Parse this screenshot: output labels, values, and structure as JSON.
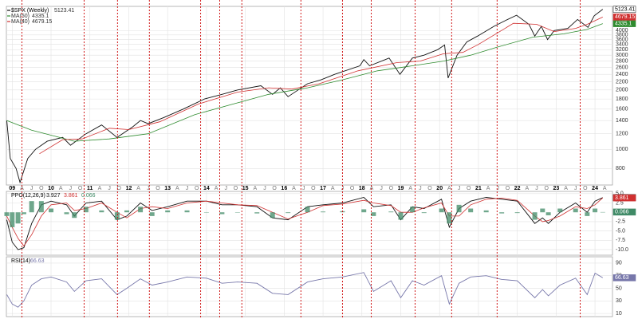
{
  "chart_data": [
    {
      "type": "line",
      "title": "$SPX (Weekly)",
      "log": true,
      "grid": true,
      "xlim": [
        2008.85,
        2024.45
      ],
      "ylim": [
        660,
        5300
      ],
      "yticks": [
        800,
        1000,
        1200,
        1400,
        1600,
        1800,
        2000,
        2200,
        2400,
        2600,
        2800,
        3000,
        3200,
        3400,
        3600,
        3800,
        4000
      ],
      "xticks": [
        {
          "value": 2009,
          "label": "09"
        },
        {
          "value": 2010,
          "label": "10"
        },
        {
          "value": 2011,
          "label": "11"
        },
        {
          "value": 2012,
          "label": "12"
        },
        {
          "value": 2013,
          "label": "13"
        },
        {
          "value": 2014,
          "label": "14"
        },
        {
          "value": 2015,
          "label": "15"
        },
        {
          "value": 2016,
          "label": "16"
        },
        {
          "value": 2017,
          "label": "17"
        },
        {
          "value": 2018,
          "label": "18"
        },
        {
          "value": 2019,
          "label": "19"
        },
        {
          "value": 2020,
          "label": "20"
        },
        {
          "value": 2021,
          "label": "21"
        },
        {
          "value": 2022,
          "label": "22"
        },
        {
          "value": 2023,
          "label": "23"
        },
        {
          "value": 2024,
          "label": "24"
        }
      ],
      "month_ticks": [
        {
          "value": 2009.25,
          "label": "A"
        },
        {
          "value": 2009.5,
          "label": "J"
        },
        {
          "value": 2009.75,
          "label": "O"
        },
        {
          "value": 2010.25,
          "label": "A"
        },
        {
          "value": 2010.5,
          "label": "J"
        },
        {
          "value": 2010.75,
          "label": "O"
        },
        {
          "value": 2011.25,
          "label": "A"
        },
        {
          "value": 2011.5,
          "label": "J"
        },
        {
          "value": 2011.75,
          "label": "O"
        },
        {
          "value": 2012.25,
          "label": "A"
        },
        {
          "value": 2012.5,
          "label": "J"
        },
        {
          "value": 2012.75,
          "label": "O"
        },
        {
          "value": 2013.25,
          "label": "A"
        },
        {
          "value": 2013.5,
          "label": "J"
        },
        {
          "value": 2013.75,
          "label": "O"
        },
        {
          "value": 2014.25,
          "label": "A"
        },
        {
          "value": 2014.5,
          "label": "J"
        },
        {
          "value": 2014.75,
          "label": "O"
        },
        {
          "value": 2015.25,
          "label": "A"
        },
        {
          "value": 2015.5,
          "label": "J"
        },
        {
          "value": 2015.75,
          "label": "O"
        },
        {
          "value": 2016.25,
          "label": "A"
        },
        {
          "value": 2016.5,
          "label": "J"
        },
        {
          "value": 2016.75,
          "label": "O"
        },
        {
          "value": 2017.25,
          "label": "A"
        },
        {
          "value": 2017.5,
          "label": "J"
        },
        {
          "value": 2017.75,
          "label": "O"
        },
        {
          "value": 2018.25,
          "label": "A"
        },
        {
          "value": 2018.5,
          "label": "J"
        },
        {
          "value": 2018.75,
          "label": "O"
        },
        {
          "value": 2019.25,
          "label": "A"
        },
        {
          "value": 2019.5,
          "label": "J"
        },
        {
          "value": 2019.75,
          "label": "O"
        },
        {
          "value": 2020.25,
          "label": "A"
        },
        {
          "value": 2020.5,
          "label": "J"
        },
        {
          "value": 2020.75,
          "label": "O"
        },
        {
          "value": 2021.25,
          "label": "A"
        },
        {
          "value": 2021.5,
          "label": "J"
        },
        {
          "value": 2021.75,
          "label": "O"
        },
        {
          "value": 2022.25,
          "label": "A"
        },
        {
          "value": 2022.5,
          "label": "J"
        },
        {
          "value": 2022.75,
          "label": "O"
        },
        {
          "value": 2023.25,
          "label": "A"
        },
        {
          "value": 2023.5,
          "label": "J"
        },
        {
          "value": 2023.75,
          "label": "O"
        },
        {
          "value": 2024.25,
          "label": "A"
        }
      ],
      "markers": {
        "color": "#cc0000",
        "x": [
          2009.25,
          2010.85,
          2011.71,
          2012.53,
          2013.85,
          2014.34,
          2014.91,
          2016.43,
          2017.5,
          2018.24,
          2019.37,
          2020.31,
          2021.48,
          2023.62
        ]
      },
      "series": [
        {
          "name": "$SPX (Weekly)",
          "color": "#111111",
          "x": [
            2008.86,
            2008.95,
            2009.1,
            2009.2,
            2009.4,
            2009.6,
            2009.9,
            2010.3,
            2010.5,
            2010.9,
            2011.3,
            2011.7,
            2012.1,
            2012.3,
            2012.5,
            2012.9,
            2013.4,
            2013.95,
            2014.4,
            2014.8,
            2015.4,
            2015.7,
            2015.9,
            2016.1,
            2016.6,
            2016.95,
            2017.3,
            2017.95,
            2018.05,
            2018.2,
            2018.7,
            2018.98,
            2019.3,
            2019.6,
            2019.95,
            2020.13,
            2020.22,
            2020.45,
            2020.7,
            2020.98,
            2021.4,
            2021.7,
            2021.98,
            2022.3,
            2022.45,
            2022.62,
            2022.78,
            2022.95,
            2023.3,
            2023.55,
            2023.82,
            2023.98,
            2024.2
          ],
          "values": [
            1400,
            900,
            800,
            680,
            900,
            1000,
            1100,
            1150,
            1050,
            1200,
            1330,
            1150,
            1300,
            1400,
            1350,
            1450,
            1600,
            1800,
            1900,
            2000,
            2100,
            1900,
            2050,
            1850,
            2150,
            2250,
            2400,
            2650,
            2850,
            2650,
            2900,
            2400,
            2900,
            3000,
            3200,
            3380,
            2300,
            3000,
            3500,
            3750,
            4200,
            4500,
            4780,
            4300,
            3750,
            4200,
            3600,
            4000,
            4100,
            4550,
            4150,
            4750,
            5123.41
          ]
        },
        {
          "name": "MA(50)",
          "color": "#2e8b2e",
          "x": [
            2008.86,
            2009.5,
            2010.6,
            2011.5,
            2012.5,
            2013.7,
            2014.7,
            2015.6,
            2016.6,
            2017.5,
            2018.4,
            2019.3,
            2020.1,
            2020.8,
            2021.5,
            2022.4,
            2023.2,
            2023.8,
            2024.2
          ],
          "values": [
            1400,
            1250,
            1100,
            1130,
            1200,
            1500,
            1700,
            1900,
            2050,
            2250,
            2500,
            2650,
            2800,
            3000,
            3300,
            3700,
            3850,
            4050,
            4335.1
          ]
        },
        {
          "name": "MA(40)",
          "color": "#d03030",
          "x": [
            2009.7,
            2010.3,
            2010.8,
            2011.5,
            2012.0,
            2012.8,
            2013.8,
            2014.8,
            2015.6,
            2016.2,
            2016.9,
            2017.9,
            2018.9,
            2019.5,
            2020.1,
            2020.6,
            2021.0,
            2021.9,
            2022.5,
            2022.95,
            2023.5,
            2023.8,
            2024.2
          ],
          "values": [
            950,
            1120,
            1130,
            1280,
            1260,
            1380,
            1700,
            1950,
            2050,
            2020,
            2150,
            2500,
            2750,
            2800,
            3050,
            3100,
            3400,
            4350,
            4300,
            3950,
            4100,
            4300,
            4679.15
          ]
        }
      ]
    },
    {
      "type": "line",
      "title": "PPO(12,26,9)",
      "grid": true,
      "xlim": [
        2008.85,
        2024.45
      ],
      "ylim": [
        -11.5,
        5.6
      ],
      "yticks": [
        {
          "value": 5,
          "label": "5.0"
        },
        {
          "value": 2.5,
          "label": "2.5"
        },
        {
          "value": -2.5,
          "label": "-2.5"
        },
        {
          "value": -5,
          "label": "-5.0"
        },
        {
          "value": -7.5,
          "label": "-7.5"
        },
        {
          "value": -10,
          "label": "-10.0"
        }
      ],
      "x": [
        2008.86,
        2009.0,
        2009.15,
        2009.3,
        2009.5,
        2009.75,
        2010.0,
        2010.4,
        2010.6,
        2010.9,
        2011.3,
        2011.7,
        2011.95,
        2012.3,
        2012.6,
        2013.0,
        2013.5,
        2014.0,
        2014.4,
        2014.8,
        2015.3,
        2015.7,
        2016.1,
        2016.6,
        2017.0,
        2017.5,
        2018.05,
        2018.3,
        2018.75,
        2019.0,
        2019.3,
        2019.6,
        2020.05,
        2020.25,
        2020.5,
        2020.8,
        2021.2,
        2021.6,
        2022.0,
        2022.45,
        2022.65,
        2022.8,
        2023.1,
        2023.5,
        2023.8,
        2024.0,
        2024.2
      ],
      "series": [
        {
          "color": "#111111",
          "values": [
            -2,
            -8,
            -10,
            -9.5,
            -3,
            2,
            3,
            2,
            -1,
            2.5,
            3,
            -2,
            -1,
            2.5,
            0.5,
            1.5,
            3,
            3,
            2,
            2,
            1.5,
            -1.5,
            -2,
            1.5,
            2,
            2.5,
            4,
            1.5,
            2,
            -2,
            1.5,
            1,
            3.5,
            -4,
            1,
            3,
            4,
            3.5,
            3,
            -3,
            -1.5,
            -3,
            0,
            2.5,
            0,
            3,
            3.927
          ]
        },
        {
          "color": "#d03030",
          "values": [
            -1,
            -4,
            -7,
            -9,
            -6,
            -1,
            2,
            2.5,
            0.5,
            1,
            2.5,
            0,
            -1.5,
            1,
            1.5,
            1,
            2.5,
            3,
            2.5,
            2,
            1.8,
            0,
            -1.8,
            0,
            1.8,
            2.2,
            3.2,
            2.5,
            1.8,
            0,
            0,
            1.2,
            2.5,
            -1,
            -1,
            2,
            3.5,
            3.8,
            3.2,
            -1,
            -2.5,
            -2.2,
            -1,
            1.5,
            1,
            2,
            3.861
          ]
        },
        {
          "type": "bar",
          "color": "#3f8a66",
          "values": [
            -1,
            -4,
            -3,
            -0.5,
            3,
            3,
            1,
            -0.5,
            -1.5,
            1.5,
            0.5,
            -2,
            0.5,
            1.5,
            -1,
            0.5,
            0.5,
            0,
            -0.5,
            0,
            -0.3,
            -1.5,
            -0.2,
            1.5,
            0.2,
            0.3,
            0.8,
            -1,
            0.2,
            -2,
            1.5,
            -0.2,
            1,
            -3,
            2,
            1,
            0.5,
            -0.3,
            -0.2,
            -2,
            1,
            -0.8,
            1,
            1,
            -1,
            1,
            0.066
          ]
        }
      ]
    },
    {
      "type": "line",
      "title": "RSI(14)",
      "grid": true,
      "xlim": [
        2008.85,
        2024.45
      ],
      "ylim": [
        5,
        100
      ],
      "yticks": [
        90,
        70,
        50,
        30,
        10
      ],
      "x": [
        2008.86,
        2009.0,
        2009.15,
        2009.3,
        2009.5,
        2009.75,
        2010.0,
        2010.4,
        2010.6,
        2010.9,
        2011.3,
        2011.7,
        2011.95,
        2012.3,
        2012.6,
        2013.0,
        2013.5,
        2014.0,
        2014.4,
        2014.8,
        2015.3,
        2015.7,
        2016.1,
        2016.6,
        2017.0,
        2017.5,
        2018.05,
        2018.3,
        2018.75,
        2019.0,
        2019.3,
        2019.6,
        2020.05,
        2020.25,
        2020.5,
        2020.8,
        2021.2,
        2021.6,
        2022.0,
        2022.45,
        2022.65,
        2022.8,
        2023.1,
        2023.5,
        2023.8,
        2024.0,
        2024.2
      ],
      "series": [
        {
          "color": "#7777aa",
          "values": [
            40,
            25,
            20,
            30,
            55,
            65,
            68,
            60,
            45,
            62,
            65,
            40,
            50,
            65,
            55,
            60,
            68,
            66,
            58,
            60,
            58,
            42,
            40,
            60,
            65,
            68,
            75,
            45,
            62,
            35,
            62,
            55,
            70,
            25,
            58,
            68,
            70,
            64,
            62,
            35,
            48,
            38,
            55,
            66,
            40,
            74,
            66.63
          ]
        }
      ]
    }
  ]
}
